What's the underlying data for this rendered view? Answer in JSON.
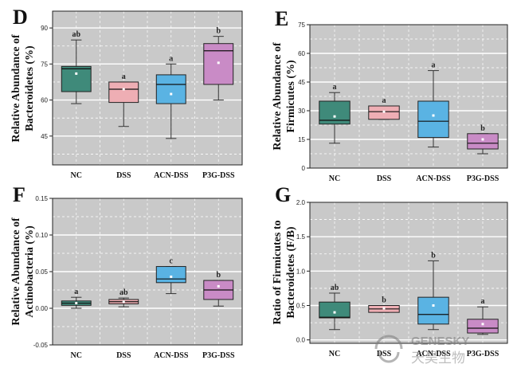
{
  "colors": {
    "NC": "#3f8a7a",
    "DSS": "#eeaeb4",
    "ACN-DSS": "#5ab3e3",
    "P3G-DSS": "#c98bc6",
    "plot_bg": "#c9c9c9",
    "grid": "#ffffff"
  },
  "chart_data": [
    {
      "type": "box",
      "panel": "D",
      "ylabel": [
        "Relative Abundance of",
        "Bacteroidetes (%)"
      ],
      "categories": [
        "NC",
        "DSS",
        "ACN-DSS",
        "P3G-DSS"
      ],
      "ylim": [
        33,
        97
      ],
      "yticks": [
        45,
        60,
        75,
        90
      ],
      "yticklabels": [
        "45",
        "60",
        "75",
        "90"
      ],
      "boxes": [
        {
          "whisker_low": 58.5,
          "q1": 63.5,
          "median": 73.0,
          "q3": 74.0,
          "whisker_high": 85.0,
          "mean": 71.0,
          "label": "ab"
        },
        {
          "whisker_low": 49.0,
          "q1": 59.0,
          "median": 64.5,
          "q3": 67.5,
          "whisker_high": 67.5,
          "mean": 64.5,
          "label": "a"
        },
        {
          "whisker_low": 44.0,
          "q1": 58.5,
          "median": 66.5,
          "q3": 70.5,
          "whisker_high": 75.0,
          "mean": 62.5,
          "label": "a"
        },
        {
          "whisker_low": 60.0,
          "q1": 66.5,
          "median": 80.5,
          "q3": 83.5,
          "whisker_high": 86.5,
          "mean": 75.5,
          "label": "b"
        }
      ]
    },
    {
      "type": "box",
      "panel": "E",
      "ylabel": [
        "Relative Abundance of",
        "Firmicutes (%)"
      ],
      "categories": [
        "NC",
        "DSS",
        "ACN-DSS",
        "P3G-DSS"
      ],
      "ylim": [
        0,
        75
      ],
      "yticks": [
        0,
        15,
        30,
        45,
        60,
        75
      ],
      "yticklabels": [
        "0",
        "15",
        "30",
        "45",
        "60",
        "75"
      ],
      "boxes": [
        {
          "whisker_low": 13.0,
          "q1": 23.0,
          "median": 25.0,
          "q3": 35.0,
          "whisker_high": 39.5,
          "mean": 27.0,
          "label": "a"
        },
        {
          "whisker_low": 25.5,
          "q1": 25.5,
          "median": 29.5,
          "q3": 32.5,
          "whisker_high": 32.5,
          "mean": 29.5,
          "label": "a"
        },
        {
          "whisker_low": 11.0,
          "q1": 16.0,
          "median": 24.5,
          "q3": 35.0,
          "whisker_high": 51.0,
          "mean": 27.5,
          "label": "a"
        },
        {
          "whisker_low": 7.5,
          "q1": 10.0,
          "median": 13.0,
          "q3": 18.0,
          "whisker_high": 18.0,
          "mean": 15.0,
          "label": "b"
        }
      ]
    },
    {
      "type": "box",
      "panel": "F",
      "ylabel": [
        "Relative Abundance of",
        "Actinobacteria (%)"
      ],
      "categories": [
        "NC",
        "DSS",
        "ACN-DSS",
        "P3G-DSS"
      ],
      "ylim": [
        -0.05,
        0.15
      ],
      "yticks": [
        -0.05,
        0.0,
        0.05,
        0.1,
        0.15
      ],
      "yticklabels": [
        "-0.05",
        "0.00",
        "0.05",
        "0.10",
        "0.15"
      ],
      "boxes": [
        {
          "whisker_low": 0.0,
          "q1": 0.004,
          "median": 0.007,
          "q3": 0.01,
          "whisker_high": 0.015,
          "mean": 0.007,
          "label": "a"
        },
        {
          "whisker_low": 0.002,
          "q1": 0.006,
          "median": 0.009,
          "q3": 0.012,
          "whisker_high": 0.014,
          "mean": 0.009,
          "label": "ab"
        },
        {
          "whisker_low": 0.02,
          "q1": 0.035,
          "median": 0.04,
          "q3": 0.057,
          "whisker_high": 0.057,
          "mean": 0.043,
          "label": "c"
        },
        {
          "whisker_low": 0.003,
          "q1": 0.012,
          "median": 0.025,
          "q3": 0.038,
          "whisker_high": 0.038,
          "mean": 0.03,
          "label": "b"
        }
      ]
    },
    {
      "type": "box",
      "panel": "G",
      "ylabel": [
        "Ratio of Firmicutes to",
        "Bacteroidetes (F/B)"
      ],
      "categories": [
        "NC",
        "DSS",
        "ACN-DSS",
        "P3G-DSS"
      ],
      "ylim": [
        -0.05,
        2.0
      ],
      "yticks": [
        0.0,
        0.5,
        1.0,
        1.5,
        2.0
      ],
      "yticklabels": [
        "0.0",
        "0.5",
        "1.0",
        "1.5",
        "2.0"
      ],
      "boxes": [
        {
          "whisker_low": 0.15,
          "q1": 0.32,
          "median": 0.33,
          "q3": 0.55,
          "whisker_high": 0.68,
          "mean": 0.4,
          "label": "ab"
        },
        {
          "whisker_low": 0.4,
          "q1": 0.4,
          "median": 0.45,
          "q3": 0.5,
          "whisker_high": 0.5,
          "mean": 0.46,
          "label": "b"
        },
        {
          "whisker_low": 0.15,
          "q1": 0.23,
          "median": 0.37,
          "q3": 0.62,
          "whisker_high": 1.15,
          "mean": 0.5,
          "label": "b"
        },
        {
          "whisker_low": 0.08,
          "q1": 0.1,
          "median": 0.17,
          "q3": 0.3,
          "whisker_high": 0.48,
          "mean": 0.23,
          "label": "a"
        }
      ]
    }
  ],
  "watermark": {
    "text": "GENESKY",
    "subtext": "天昊生物"
  }
}
